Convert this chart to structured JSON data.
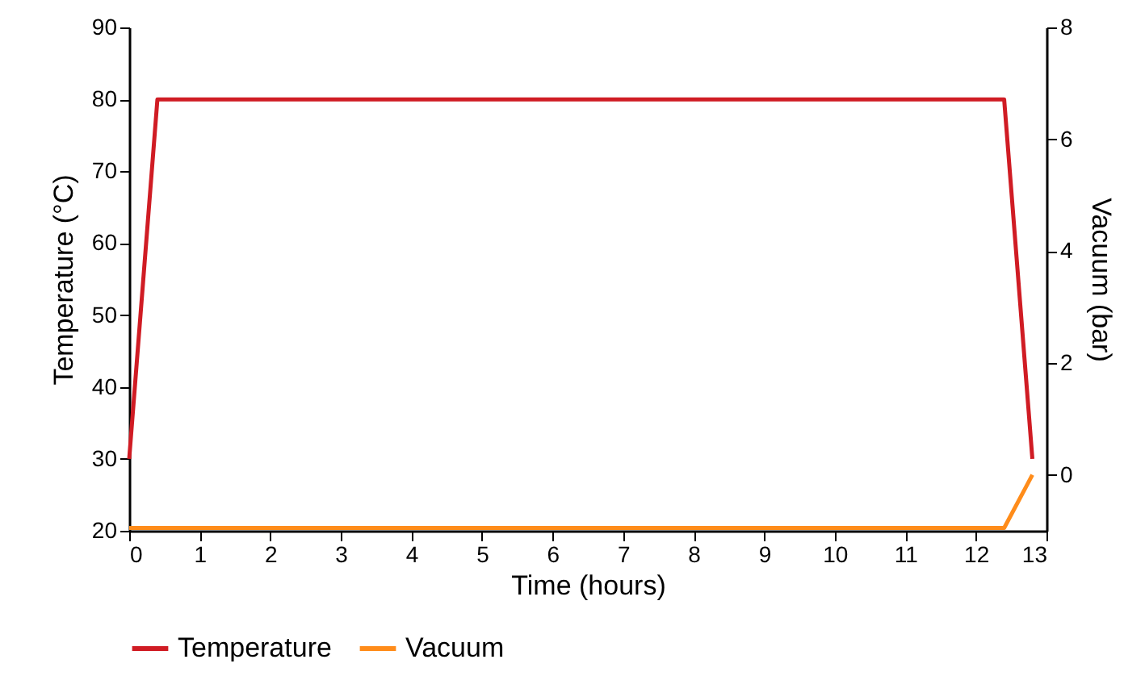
{
  "chart_data": {
    "type": "line",
    "xlabel": "Time (hours)",
    "ylabel": "Temperature (°C)",
    "y2label": "Vacuum (bar)",
    "xlim": [
      0,
      13
    ],
    "xticks": [
      0,
      1,
      2,
      3,
      4,
      5,
      6,
      7,
      8,
      9,
      10,
      11,
      12,
      13
    ],
    "ylim": [
      20,
      90
    ],
    "yticks": [
      20,
      30,
      40,
      50,
      60,
      70,
      80,
      90
    ],
    "y2lim": [
      -1,
      8
    ],
    "y2ticks": [
      0,
      2,
      4,
      6,
      8
    ],
    "grid": false,
    "legend": "bottom",
    "line_style": "solid",
    "marker": "none",
    "series": [
      {
        "name": "Temperature",
        "color": "#d01c24",
        "x": [
          0,
          0.4,
          12.4,
          12.8
        ],
        "values": [
          30,
          80,
          80,
          30
        ]
      },
      {
        "name": "Vacuum",
        "color": "#ff8c1a",
        "axis": "y2",
        "x": [
          0,
          12.4,
          12.8
        ],
        "values": [
          -0.95,
          -0.95,
          0
        ]
      }
    ]
  }
}
